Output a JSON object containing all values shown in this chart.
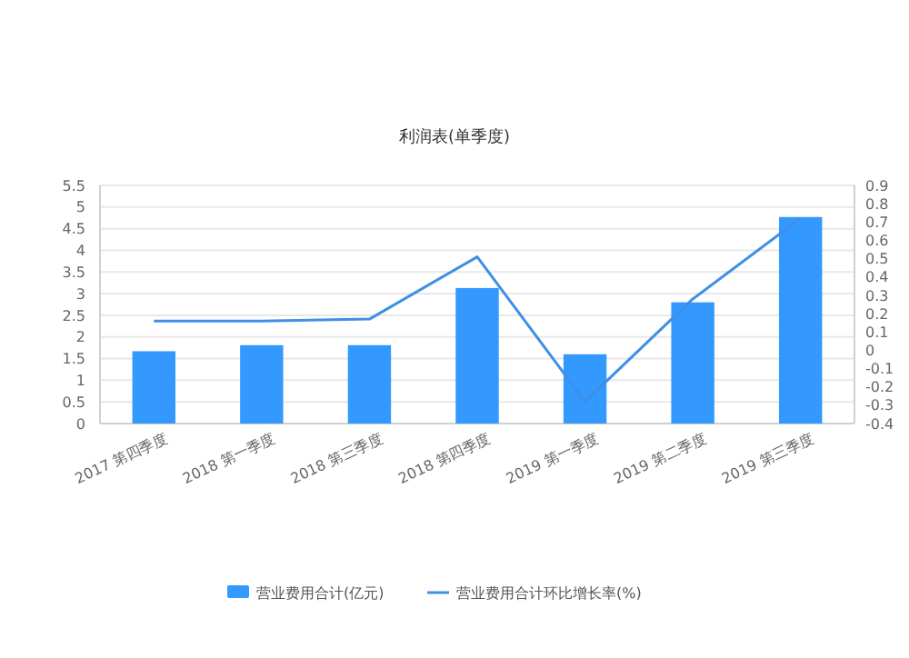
{
  "chart_data": {
    "type": "bar",
    "title": "利润表(单季度)",
    "categories": [
      "2017 第四季度",
      "2018 第一季度",
      "2018 第三季度",
      "2018 第四季度",
      "2019 第一季度",
      "2019 第二季度",
      "2019 第三季度"
    ],
    "series": [
      {
        "name": "营业费用合计(亿元)",
        "color": "#3399ff",
        "values": [
          1.67,
          1.81,
          1.81,
          3.13,
          1.6,
          2.8,
          4.77
        ]
      },
      {
        "name": "营业费用合计环比增长率(%)",
        "type": "line",
        "axis": "y2",
        "color": "#3f8fe6",
        "values": [
          0.16,
          0.16,
          0.17,
          0.51,
          -0.28,
          0.28,
          0.72
        ]
      }
    ],
    "ylim": [
      0,
      5.5
    ],
    "yticks": [
      0,
      0.5,
      1,
      1.5,
      2,
      2.5,
      3,
      3.5,
      4,
      4.5,
      5,
      5.5
    ],
    "y2lim": [
      -0.4,
      0.9
    ],
    "y2ticks": [
      -0.4,
      -0.3,
      -0.2,
      -0.1,
      0,
      0.1,
      0.2,
      0.3,
      0.4,
      0.5,
      0.6,
      0.7,
      0.8,
      0.9
    ],
    "grid": "y",
    "legend": "bottom",
    "marker": "none",
    "line_style": "solid"
  }
}
